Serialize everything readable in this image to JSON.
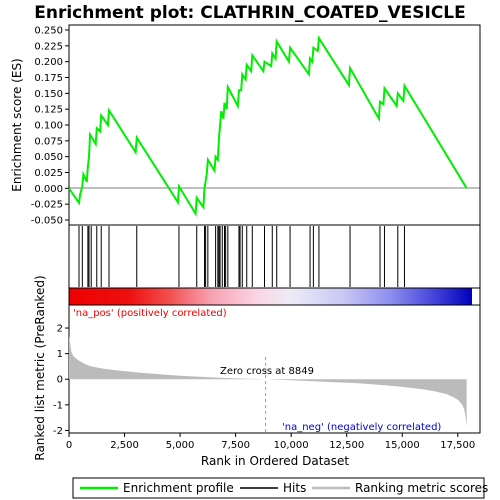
{
  "chart_data": {
    "type": "line",
    "title": "Enrichment plot: CLATHRIN_COATED_VESICLE",
    "es_panel": {
      "ylabel": "Enrichment score (ES)",
      "yticks": [
        "0.250",
        "0.225",
        "0.200",
        "0.175",
        "0.150",
        "0.125",
        "0.100",
        "0.075",
        "0.050",
        "0.025",
        "0.000",
        "-0.025",
        "-0.050"
      ],
      "ylim": [
        -0.05,
        0.25
      ],
      "series_name": "Enrichment profile",
      "color": "#00ee00",
      "x": [
        0,
        450,
        500,
        600,
        650,
        800,
        850,
        900,
        950,
        1200,
        1250,
        1400,
        1450,
        1750,
        1800,
        3000,
        3050,
        4900,
        4950,
        5700,
        5750,
        6050,
        6100,
        6200,
        6250,
        6550,
        6600,
        6700,
        6750,
        6800,
        6850,
        6950,
        7000,
        7100,
        7150,
        7600,
        7650,
        7750,
        7800,
        7950,
        8000,
        8200,
        8250,
        8750,
        8800,
        9100,
        9150,
        9300,
        9350,
        9900,
        9950,
        10800,
        10850,
        10950,
        11000,
        11200,
        11250,
        12600,
        12650,
        13950,
        14000,
        14150,
        14200,
        14750,
        14800,
        15050,
        15100,
        17900
      ],
      "y": [
        0.0,
        -0.023,
        -0.01,
        0.003,
        0.022,
        0.01,
        0.035,
        0.05,
        0.085,
        0.07,
        0.095,
        0.09,
        0.115,
        0.1,
        0.123,
        0.057,
        0.08,
        -0.022,
        0.003,
        -0.04,
        -0.015,
        -0.03,
        0.0,
        0.022,
        0.045,
        0.028,
        0.05,
        0.045,
        0.08,
        0.1,
        0.122,
        0.11,
        0.135,
        0.125,
        0.16,
        0.13,
        0.155,
        0.155,
        0.18,
        0.172,
        0.195,
        0.185,
        0.21,
        0.185,
        0.2,
        0.193,
        0.213,
        0.205,
        0.232,
        0.2,
        0.222,
        0.18,
        0.205,
        0.2,
        0.222,
        0.217,
        0.237,
        0.163,
        0.19,
        0.11,
        0.137,
        0.133,
        0.158,
        0.13,
        0.15,
        0.138,
        0.162,
        0.0
      ]
    },
    "hits_x": [
      450,
      600,
      850,
      900,
      1000,
      1250,
      1450,
      1800,
      3050,
      4950,
      5750,
      6100,
      6150,
      6250,
      6600,
      6700,
      6750,
      6800,
      6900,
      7000,
      7050,
      7150,
      7650,
      7700,
      7800,
      8000,
      8250,
      8800,
      9150,
      9350,
      9950,
      10850,
      11000,
      11250,
      12650,
      14000,
      14200,
      14800,
      15100
    ],
    "rank_panel": {
      "ylabel": "Ranked list metric (PreRanked)",
      "yticks": [
        "2",
        "1",
        "0",
        "-1",
        "-2"
      ],
      "ylim": [
        -2.1,
        2.9
      ],
      "x": [
        0,
        50,
        100,
        200,
        400,
        700,
        1000,
        1500,
        2000,
        3000,
        4000,
        5000,
        6000,
        7000,
        8000,
        8849,
        10000,
        11000,
        12000,
        13000,
        14000,
        15000,
        16000,
        16500,
        17000,
        17300,
        17500,
        17700,
        17800,
        17850,
        17900
      ],
      "y": [
        1.7,
        1.4,
        1.1,
        0.9,
        0.75,
        0.6,
        0.5,
        0.42,
        0.36,
        0.27,
        0.2,
        0.14,
        0.09,
        0.05,
        0.02,
        0.0,
        -0.04,
        -0.08,
        -0.12,
        -0.16,
        -0.22,
        -0.3,
        -0.4,
        -0.48,
        -0.58,
        -0.7,
        -0.8,
        -1.0,
        -1.2,
        -1.5,
        -1.85
      ],
      "zero_cross_label": "Zero cross at 8849",
      "zero_cross_x": 8849,
      "pos_label": "'na_pos' (positively correlated)",
      "neg_label": "'na_neg' (negatively correlated)"
    },
    "xlabel": "Rank in Ordered Dataset",
    "xticks": [
      "0",
      "2,500",
      "5,000",
      "7,500",
      "10,000",
      "12,500",
      "15,000",
      "17,500"
    ],
    "xtick_values": [
      0,
      2500,
      5000,
      7500,
      10000,
      12500,
      15000,
      17500
    ],
    "xlim": [
      0,
      18500
    ],
    "legend": [
      {
        "label": "Enrichment profile",
        "color": "#00ee00"
      },
      {
        "label": "Hits",
        "color": "#000000"
      },
      {
        "label": "Ranking metric scores",
        "color": "#bbbbbb"
      }
    ]
  }
}
